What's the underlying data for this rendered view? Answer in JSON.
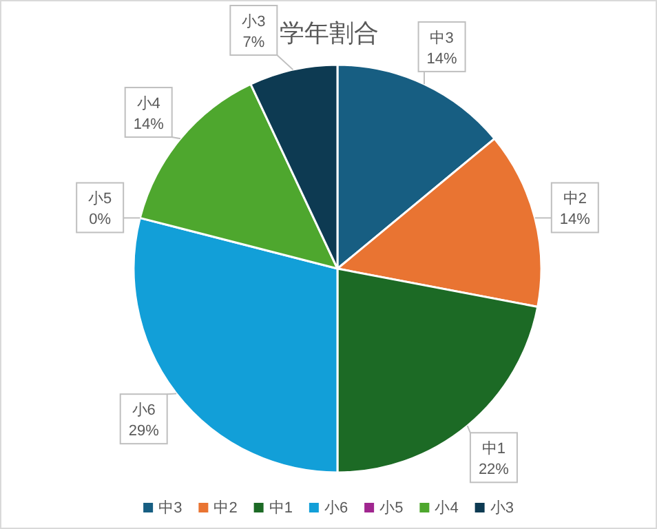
{
  "chart_data": {
    "type": "pie",
    "title": "学年割合",
    "categories": [
      "中3",
      "中2",
      "中1",
      "小6",
      "小5",
      "小4",
      "小3"
    ],
    "values": [
      14,
      14,
      22,
      29,
      0,
      14,
      7
    ],
    "value_labels": [
      "14%",
      "14%",
      "22%",
      "29%",
      "0%",
      "14%",
      "7%"
    ],
    "colors": [
      "#175e82",
      "#e97432",
      "#1c6a25",
      "#129fd8",
      "#a0268f",
      "#4ea72e",
      "#0d3a52"
    ],
    "legend": "bottom"
  }
}
